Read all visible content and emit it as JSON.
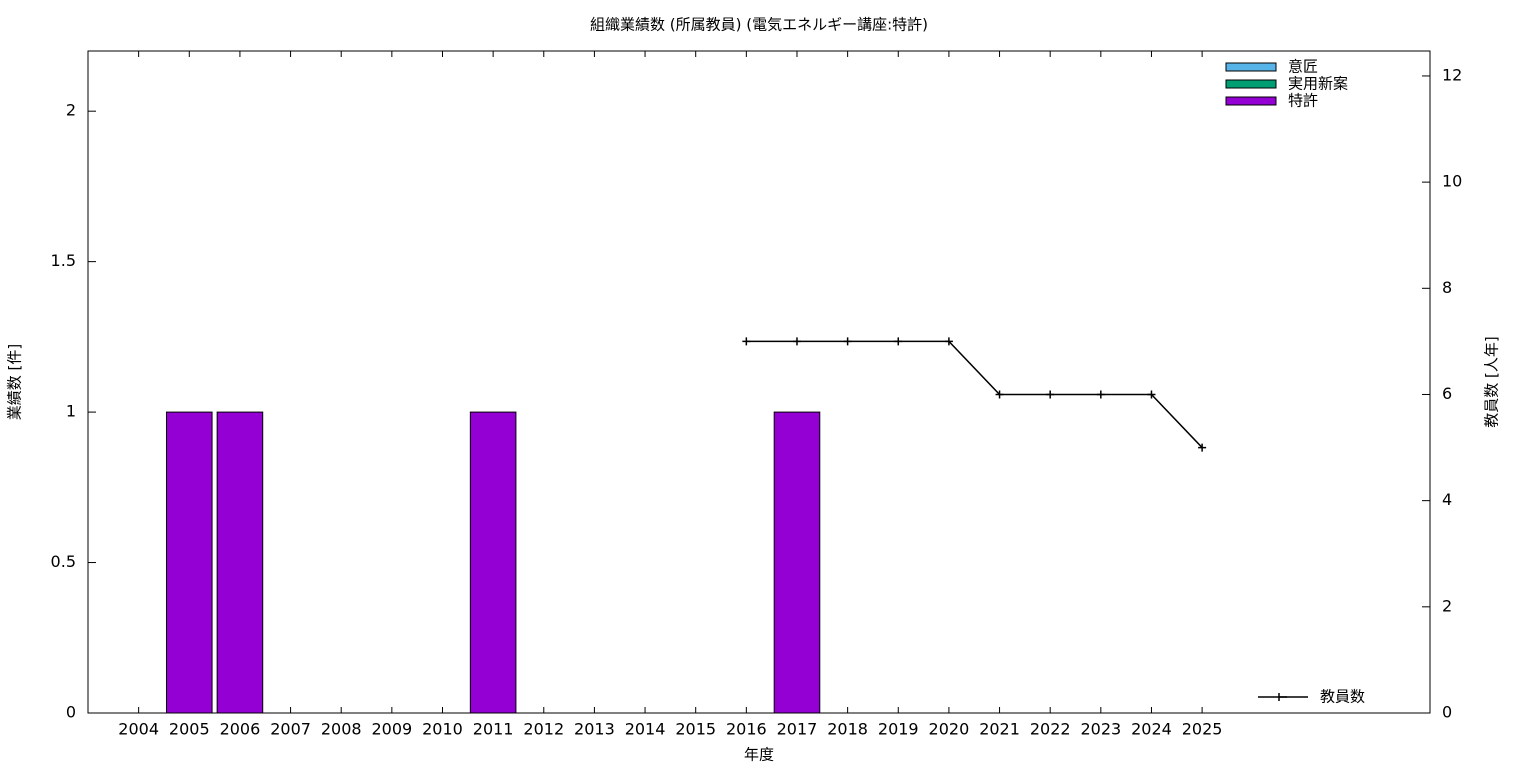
{
  "chart_data": {
    "type": "bar",
    "title": "組織業績数 (所属教員) (電気エネルギー講座:特許)",
    "x_label": "年度",
    "y_label": "業績数 [件]",
    "y2_label": "教員数 [人年]",
    "categories": [
      "2004",
      "2005",
      "2006",
      "2007",
      "2008",
      "2009",
      "2010",
      "2011",
      "2012",
      "2013",
      "2014",
      "2015",
      "2016",
      "2017",
      "2018",
      "2019",
      "2020",
      "2021",
      "2022",
      "2023",
      "2024",
      "2025"
    ],
    "stacked": true,
    "series": [
      {
        "name": "意匠",
        "color": "#56b4e9",
        "values": [
          0,
          0,
          0,
          0,
          0,
          0,
          0,
          0,
          0,
          0,
          0,
          0,
          0,
          0,
          0,
          0,
          0,
          0,
          0,
          0,
          0,
          0
        ]
      },
      {
        "name": "実用新案",
        "color": "#009e73",
        "values": [
          0,
          0,
          0,
          0,
          0,
          0,
          0,
          0,
          0,
          0,
          0,
          0,
          0,
          0,
          0,
          0,
          0,
          0,
          0,
          0,
          0,
          0
        ]
      },
      {
        "name": "特許",
        "color": "#9400d3",
        "values": [
          0,
          1,
          1,
          0,
          0,
          0,
          0,
          1,
          0,
          0,
          0,
          0,
          0,
          1,
          0,
          0,
          0,
          0,
          0,
          0,
          0,
          0
        ]
      },
      {
        "name": "教員数",
        "type": "line",
        "axis": "y2",
        "color": "#000000",
        "values": [
          null,
          null,
          null,
          null,
          null,
          null,
          null,
          null,
          null,
          null,
          null,
          null,
          7,
          7,
          7,
          7,
          7,
          6,
          6,
          6,
          6,
          5
        ]
      }
    ],
    "ylim": [
      0,
      2.2
    ],
    "yticks": [
      0,
      0.5,
      1,
      1.5,
      2
    ],
    "y2lim": [
      0,
      12.47
    ],
    "y2ticks": [
      0,
      2,
      4,
      6,
      8,
      10,
      12
    ],
    "grid": false
  }
}
